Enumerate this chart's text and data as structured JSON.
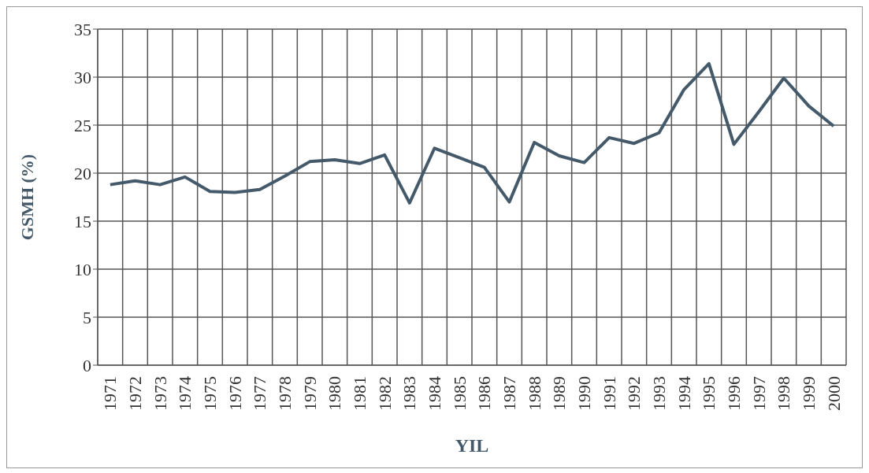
{
  "chart_data": {
    "type": "line",
    "xlabel": "YIL",
    "ylabel": "GSMH (%)",
    "categories": [
      "1971",
      "1972",
      "1973",
      "1974",
      "1975",
      "1976",
      "1977",
      "1978",
      "1979",
      "1980",
      "1981",
      "1982",
      "1983",
      "1984",
      "1985",
      "1986",
      "1987",
      "1988",
      "1989",
      "1990",
      "1991",
      "1992",
      "1993",
      "1994",
      "1995",
      "1996",
      "1997",
      "1998",
      "1999",
      "2000"
    ],
    "series": [
      {
        "color": "#44596a",
        "values": [
          18.8,
          19.2,
          18.8,
          19.6,
          18.1,
          18.0,
          18.3,
          19.7,
          21.2,
          21.4,
          21.0,
          21.9,
          16.9,
          22.6,
          21.6,
          20.6,
          17.0,
          23.2,
          21.8,
          21.1,
          23.7,
          23.1,
          24.2,
          28.7,
          31.4,
          23.0,
          26.4,
          29.9,
          27.0,
          24.9
        ]
      }
    ],
    "ylim": [
      0,
      35
    ],
    "yticks": [
      0,
      5,
      10,
      15,
      20,
      25,
      30,
      35
    ],
    "grid": true,
    "legend": false,
    "marker": "none",
    "line_style": "solid"
  }
}
